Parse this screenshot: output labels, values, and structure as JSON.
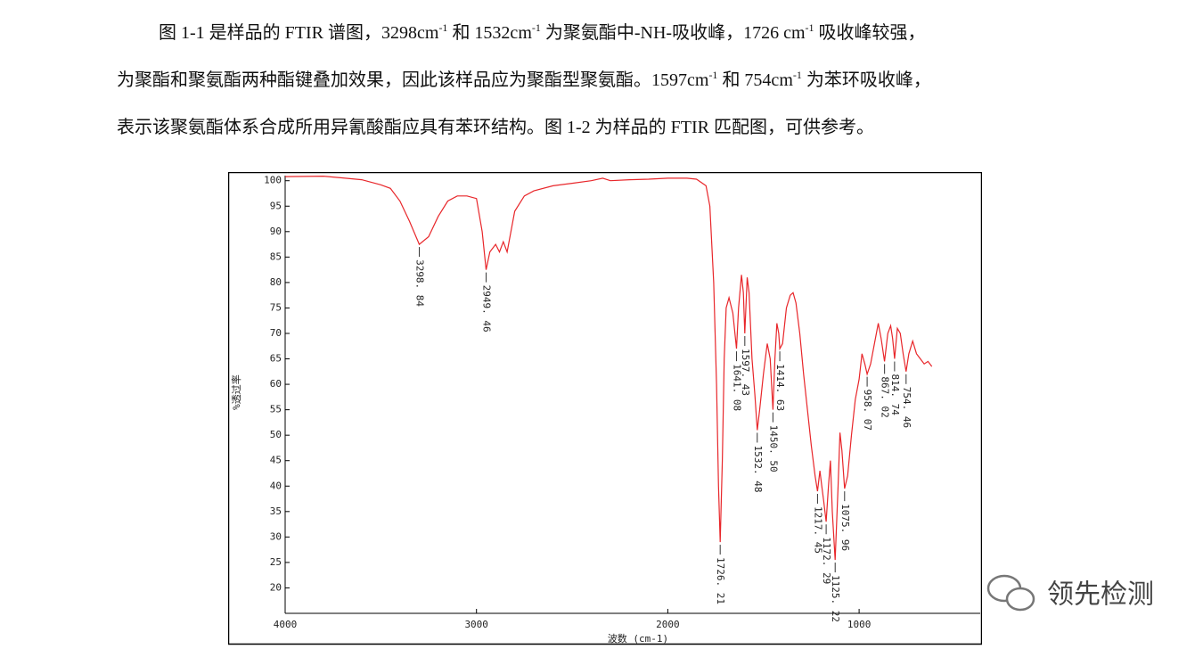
{
  "paragraph": {
    "lines": [
      [
        "图 1-1 是样品的 FTIR 谱图，3298cm",
        "-1",
        " 和 1532cm",
        "-1",
        " 为聚氨酯中-NH-吸收峰，1726 cm",
        "-1",
        " 吸收峰较强，"
      ],
      [
        "为聚酯和聚氨酯两种酯键叠加效果，因此该样品应为聚酯型聚氨酯。1597cm",
        "-1",
        " 和 754cm",
        "-1",
        " 为苯环吸收峰，"
      ],
      [
        "表示该聚氨酯体系合成所用异氰酸酯应具有苯环结构。图 1-2 为样品的 FTIR 匹配图，可供参考。"
      ]
    ]
  },
  "chart_data": {
    "type": "line",
    "ylabel": "%透过率",
    "xlabel": "波数 (cm-1)",
    "xlim": [
      4000,
      367
    ],
    "ylim": [
      15,
      101
    ],
    "xticks": [
      4000,
      3000,
      2000,
      1000
    ],
    "yticks": [
      20,
      25,
      30,
      35,
      40,
      45,
      50,
      55,
      60,
      65,
      70,
      75,
      80,
      85,
      90,
      95,
      100
    ],
    "x": [
      4000,
      3800,
      3600,
      3500,
      3450,
      3400,
      3350,
      3298.84,
      3250,
      3200,
      3150,
      3100,
      3050,
      3000,
      2970,
      2949.46,
      2930,
      2900,
      2880,
      2860,
      2840,
      2800,
      2750,
      2700,
      2600,
      2500,
      2400,
      2340,
      2300,
      2200,
      2100,
      2000,
      1900,
      1850,
      1800,
      1780,
      1760,
      1745,
      1735,
      1726.21,
      1715,
      1705,
      1695,
      1680,
      1660,
      1641.08,
      1630,
      1615,
      1605,
      1597.43,
      1585,
      1575,
      1560,
      1545,
      1532.48,
      1520,
      1500,
      1480,
      1465,
      1450.5,
      1440,
      1430,
      1420,
      1414.63,
      1400,
      1380,
      1360,
      1345,
      1330,
      1310,
      1290,
      1270,
      1250,
      1230,
      1217.45,
      1205,
      1195,
      1185,
      1172.29,
      1160,
      1150,
      1140,
      1125.22,
      1110,
      1100,
      1090,
      1075.96,
      1060,
      1040,
      1020,
      1000,
      985,
      970,
      958.07,
      940,
      920,
      900,
      885,
      867.02,
      850,
      835,
      825,
      814.74,
      800,
      785,
      770,
      754.46,
      740,
      720,
      700,
      680,
      660,
      640,
      620
    ],
    "series": [
      {
        "color": "#e8262a",
        "values": [
          100.8,
          100.9,
          100.2,
          99.2,
          98.5,
          96,
          92,
          87.5,
          89,
          93,
          96,
          97,
          97,
          96.5,
          90,
          82.5,
          86,
          87.5,
          86,
          88,
          86,
          94,
          97,
          98,
          99,
          99.5,
          100,
          100.5,
          100,
          100.2,
          100.3,
          100.5,
          100.5,
          100.3,
          99,
          95,
          80,
          60,
          40,
          29,
          45,
          65,
          75,
          77,
          74,
          67,
          75,
          81.5,
          78,
          70,
          81,
          78,
          65,
          58,
          51,
          55,
          62,
          68,
          65,
          55,
          65,
          72,
          70,
          67,
          68,
          75,
          77.5,
          78,
          76,
          70,
          62,
          55,
          48,
          42,
          39,
          43,
          40,
          37,
          33,
          40,
          45,
          35,
          25.5,
          40,
          50.5,
          47,
          39.5,
          42,
          50,
          57,
          61,
          66,
          64,
          62,
          64,
          68,
          72,
          69,
          64.5,
          70,
          71.5,
          69,
          65,
          71,
          70,
          66,
          62.5,
          66,
          68.5,
          66,
          65,
          64,
          64.5,
          63.5
        ]
      }
    ],
    "peaks": {
      "x": [
        3298.84,
        2949.46,
        1726.21,
        1641.08,
        1597.43,
        1532.48,
        1450.5,
        1414.63,
        1217.45,
        1172.29,
        1125.22,
        1075.96,
        958.07,
        867.02,
        814.74,
        754.46
      ],
      "y": [
        87.5,
        82.5,
        29,
        67,
        70,
        51,
        55,
        67,
        39,
        33,
        25.5,
        39.5,
        62,
        64.5,
        65,
        62.5
      ],
      "value_labels": [
        "3298. 84",
        "2949. 46",
        "1726. 21",
        "1641. 08",
        "1597. 43",
        "1532. 48",
        "1450. 50",
        "1414. 63",
        "1217. 45",
        "1172. 29",
        "1125. 22",
        "1075. 96",
        "958. 07",
        "867. 02",
        "814. 74",
        "754. 46"
      ]
    }
  },
  "watermark": {
    "text": "领先检测"
  }
}
